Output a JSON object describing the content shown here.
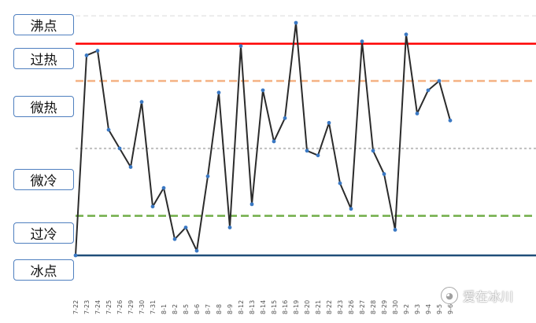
{
  "chart_data": {
    "type": "line",
    "title": "",
    "xlabel": "",
    "ylabel": "",
    "ylim": [
      0,
      10
    ],
    "grid": false,
    "categories": [
      "7-22",
      "7-23",
      "7-24",
      "7-25",
      "7-26",
      "7-29",
      "7-30",
      "7-31",
      "8-1",
      "8-2",
      "8-5",
      "8-6",
      "8-7",
      "8-8",
      "8-9",
      "8-12",
      "8-13",
      "8-14",
      "8-15",
      "8-16",
      "8-19",
      "8-20",
      "8-21",
      "8-22",
      "8-23",
      "8-26",
      "8-27",
      "8-28",
      "8-29",
      "8-30",
      "9-2",
      "9-3",
      "9-4",
      "9-5",
      "9-6"
    ],
    "series": [
      {
        "name": "",
        "color": "#2b2b2b",
        "marker_color": "#3a78c3",
        "values": [
          0.0,
          8.6,
          8.8,
          5.4,
          4.6,
          3.8,
          6.6,
          2.1,
          2.9,
          0.7,
          1.2,
          0.2,
          3.4,
          7.0,
          1.2,
          9.0,
          2.2,
          7.1,
          4.9,
          5.9,
          10.0,
          4.5,
          4.3,
          5.7,
          3.1,
          2.0,
          9.2,
          4.5,
          3.5,
          1.1,
          9.5,
          6.1,
          7.1,
          7.5,
          5.8
        ]
      }
    ],
    "reference_lines": [
      {
        "key": "boil",
        "value": 9.1,
        "color": "#ff0000",
        "style": "solid"
      },
      {
        "key": "over_hot",
        "value": 7.5,
        "color": "#f4b183",
        "style": "dashed"
      },
      {
        "key": "mid",
        "value": 4.6,
        "color": "#bfbfbf",
        "style": "dotted"
      },
      {
        "key": "over_cold",
        "value": 1.7,
        "color": "#70ad47",
        "style": "dashed"
      },
      {
        "key": "freeze",
        "value": 0.0,
        "color": "#1f4e79",
        "style": "solid"
      },
      {
        "key": "top",
        "value": 10.3,
        "color": "#d9d9d9",
        "style": "dashed"
      }
    ]
  },
  "levels": [
    {
      "key": "boil",
      "label": "沸点"
    },
    {
      "key": "overheat",
      "label": "过热"
    },
    {
      "key": "warm",
      "label": "微热"
    },
    {
      "key": "cool",
      "label": "微冷"
    },
    {
      "key": "overcool",
      "label": "过冷"
    },
    {
      "key": "freeze",
      "label": "冰点"
    }
  ],
  "watermark": {
    "text": "爱在冰川",
    "icon": "wechat-icon"
  }
}
